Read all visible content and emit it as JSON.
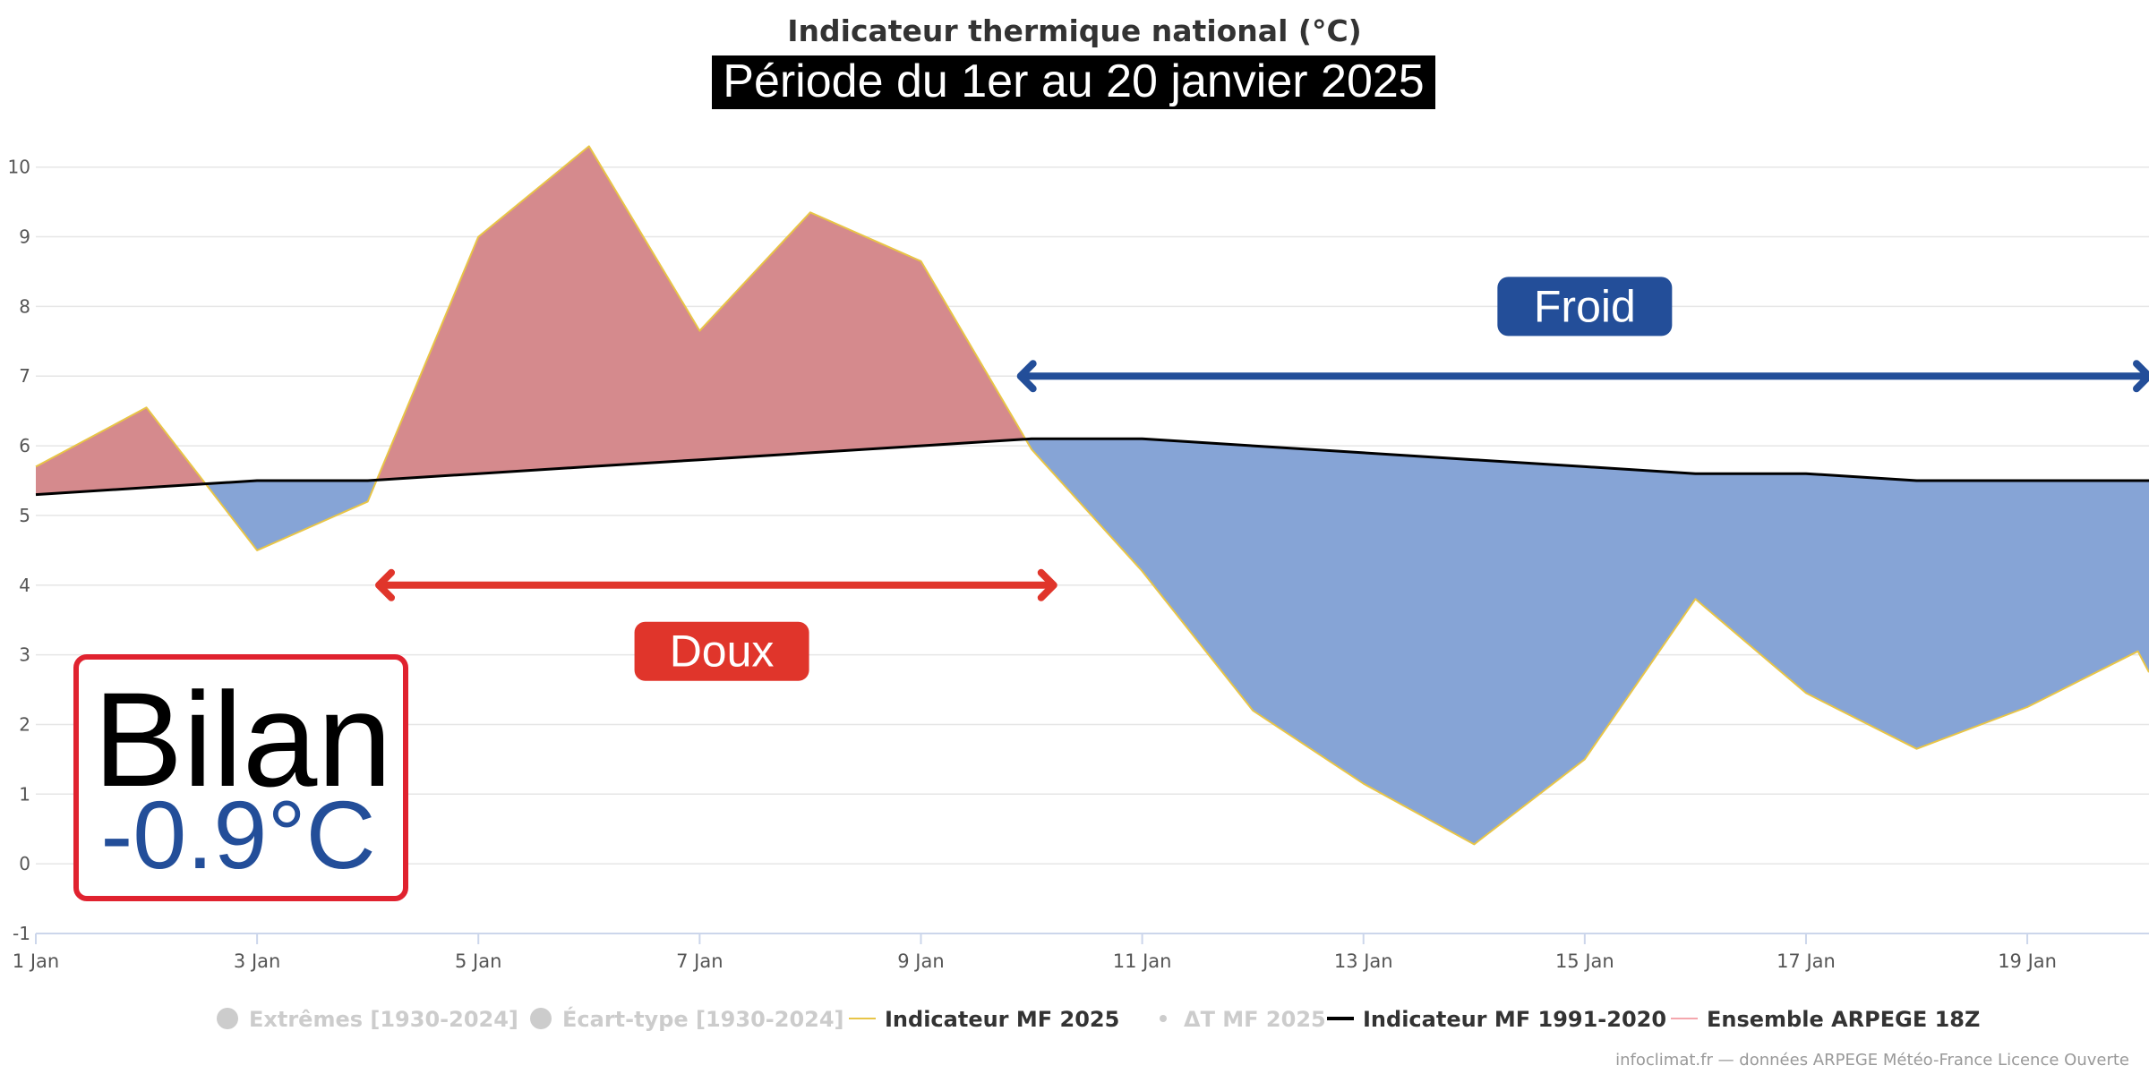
{
  "chart_data": {
    "type": "area",
    "title": "Indicateur thermique national (°C)",
    "subtitle": "Période du 1er au 20 janvier 2025",
    "x_tick_labels": [
      "1 Jan",
      "3 Jan",
      "5 Jan",
      "7 Jan",
      "9 Jan",
      "11 Jan",
      "13 Jan",
      "15 Jan",
      "17 Jan",
      "19 Jan"
    ],
    "y_ticks": [
      -1,
      0,
      1,
      2,
      3,
      4,
      5,
      6,
      7,
      8,
      9,
      10
    ],
    "ylim": [
      -1,
      10.6
    ],
    "xlim": [
      1,
      20.1
    ],
    "grid": true,
    "legend_position": "bottom",
    "series": [
      {
        "name": "Indicateur MF 2025",
        "color": "#e8c547",
        "x": [
          1,
          2,
          3,
          4,
          5,
          6,
          7,
          8,
          9,
          10,
          11,
          12,
          13,
          14,
          15,
          16,
          17,
          18,
          19,
          20,
          20.1
        ],
        "values": [
          5.7,
          6.55,
          4.5,
          5.2,
          9.0,
          10.3,
          7.65,
          9.35,
          8.65,
          5.95,
          4.2,
          2.2,
          1.15,
          0.28,
          1.5,
          3.8,
          2.45,
          1.65,
          2.25,
          3.05,
          2.75
        ]
      },
      {
        "name": "Indicateur MF 1991-2020",
        "color": "#000000",
        "x": [
          1,
          2,
          3,
          4,
          5,
          6,
          7,
          8,
          9,
          10,
          11,
          12,
          13,
          14,
          15,
          16,
          17,
          18,
          19,
          20,
          20.1
        ],
        "values": [
          5.3,
          5.4,
          5.5,
          5.5,
          5.6,
          5.7,
          5.8,
          5.9,
          6.0,
          6.1,
          6.1,
          6.0,
          5.9,
          5.8,
          5.7,
          5.6,
          5.6,
          5.5,
          5.5,
          5.5,
          5.5
        ]
      }
    ],
    "fill_colors": {
      "warm": "#d58a8d",
      "cold": "#86a4d6"
    },
    "annotations": {
      "doux": {
        "label": "Doux",
        "color": "#e0352b",
        "x_from": 4.1,
        "x_to": 10.2,
        "y": 4.0,
        "label_x": 7.2,
        "label_y": 3.05
      },
      "froid": {
        "label": "Froid",
        "color": "#234e99",
        "x_from": 9.9,
        "x_to": 20.1,
        "y": 7.0,
        "label_x": 15.0,
        "label_y": 8.0
      }
    }
  },
  "bilan": {
    "title": "Bilan",
    "value": "-0.9°C",
    "value_color": "#234e99",
    "border_color": "#e0222f"
  },
  "legend": [
    {
      "label": "Extrêmes [1930-2024]",
      "symbol": "circle",
      "color": "#cccccc",
      "active": false
    },
    {
      "label": "Écart-type [1930-2024]",
      "symbol": "circle",
      "color": "#cccccc",
      "active": false
    },
    {
      "label": "Indicateur MF 2025",
      "symbol": "line",
      "color": "#e8c547",
      "active": true
    },
    {
      "label": "ΔT MF 2025",
      "symbol": "dot",
      "color": "#cccccc",
      "active": false
    },
    {
      "label": "Indicateur MF 1991-2020",
      "symbol": "line",
      "color": "#000000",
      "active": true
    },
    {
      "label": "Ensemble ARPEGE 18Z",
      "symbol": "line",
      "color": "#f4a7ad",
      "active": true
    }
  ],
  "credit": "infoclimat.fr — données ARPEGE Météo-France Licence Ouverte"
}
